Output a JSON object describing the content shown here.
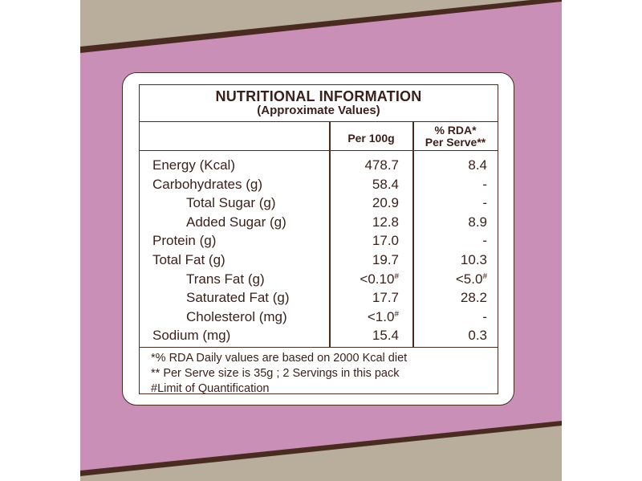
{
  "colors": {
    "background_pink": "#c98fb6",
    "kraft_paper": "#b9ad9c",
    "dark_brown": "#4a2b22",
    "text": "#3a1f1a"
  },
  "table": {
    "title": "NUTRITIONAL INFORMATION",
    "subtitle": "(Approximate Values)",
    "col_per": "Per 100g",
    "col_rda_line1": "% RDA*",
    "col_rda_line2": "Per Serve**",
    "rows": [
      {
        "name": "Energy (Kcal)",
        "value": "478.7",
        "rda": "8.4"
      },
      {
        "name": "Carbohydrates (g)",
        "value": "58.4",
        "rda": "-"
      },
      {
        "name": "Total Sugar (g)",
        "value": "20.9",
        "rda": "-"
      },
      {
        "name": "Added Sugar (g)",
        "value": "12.8",
        "rda": "8.9"
      },
      {
        "name": "Protein (g)",
        "value": "17.0",
        "rda": "-"
      },
      {
        "name": "Total Fat (g)",
        "value": "19.7",
        "rda": "10.3"
      },
      {
        "name": "Trans Fat (g)",
        "value": "<0.10",
        "value_mark": "#",
        "rda": "<5.0",
        "rda_mark": "#"
      },
      {
        "name": "Saturated Fat (g)",
        "value": "17.7",
        "rda": "28.2"
      },
      {
        "name": "Cholesterol (mg)",
        "value": "<1.0",
        "value_mark": "#",
        "rda": "-"
      },
      {
        "name": "Sodium (mg)",
        "value": "15.4",
        "rda": "0.3"
      }
    ],
    "footnotes": [
      "*% RDA Daily values are based on 2000 Kcal diet",
      "** Per Serve size is 35g ; 2 Servings in this pack",
      "#Limit of Quantification"
    ]
  }
}
